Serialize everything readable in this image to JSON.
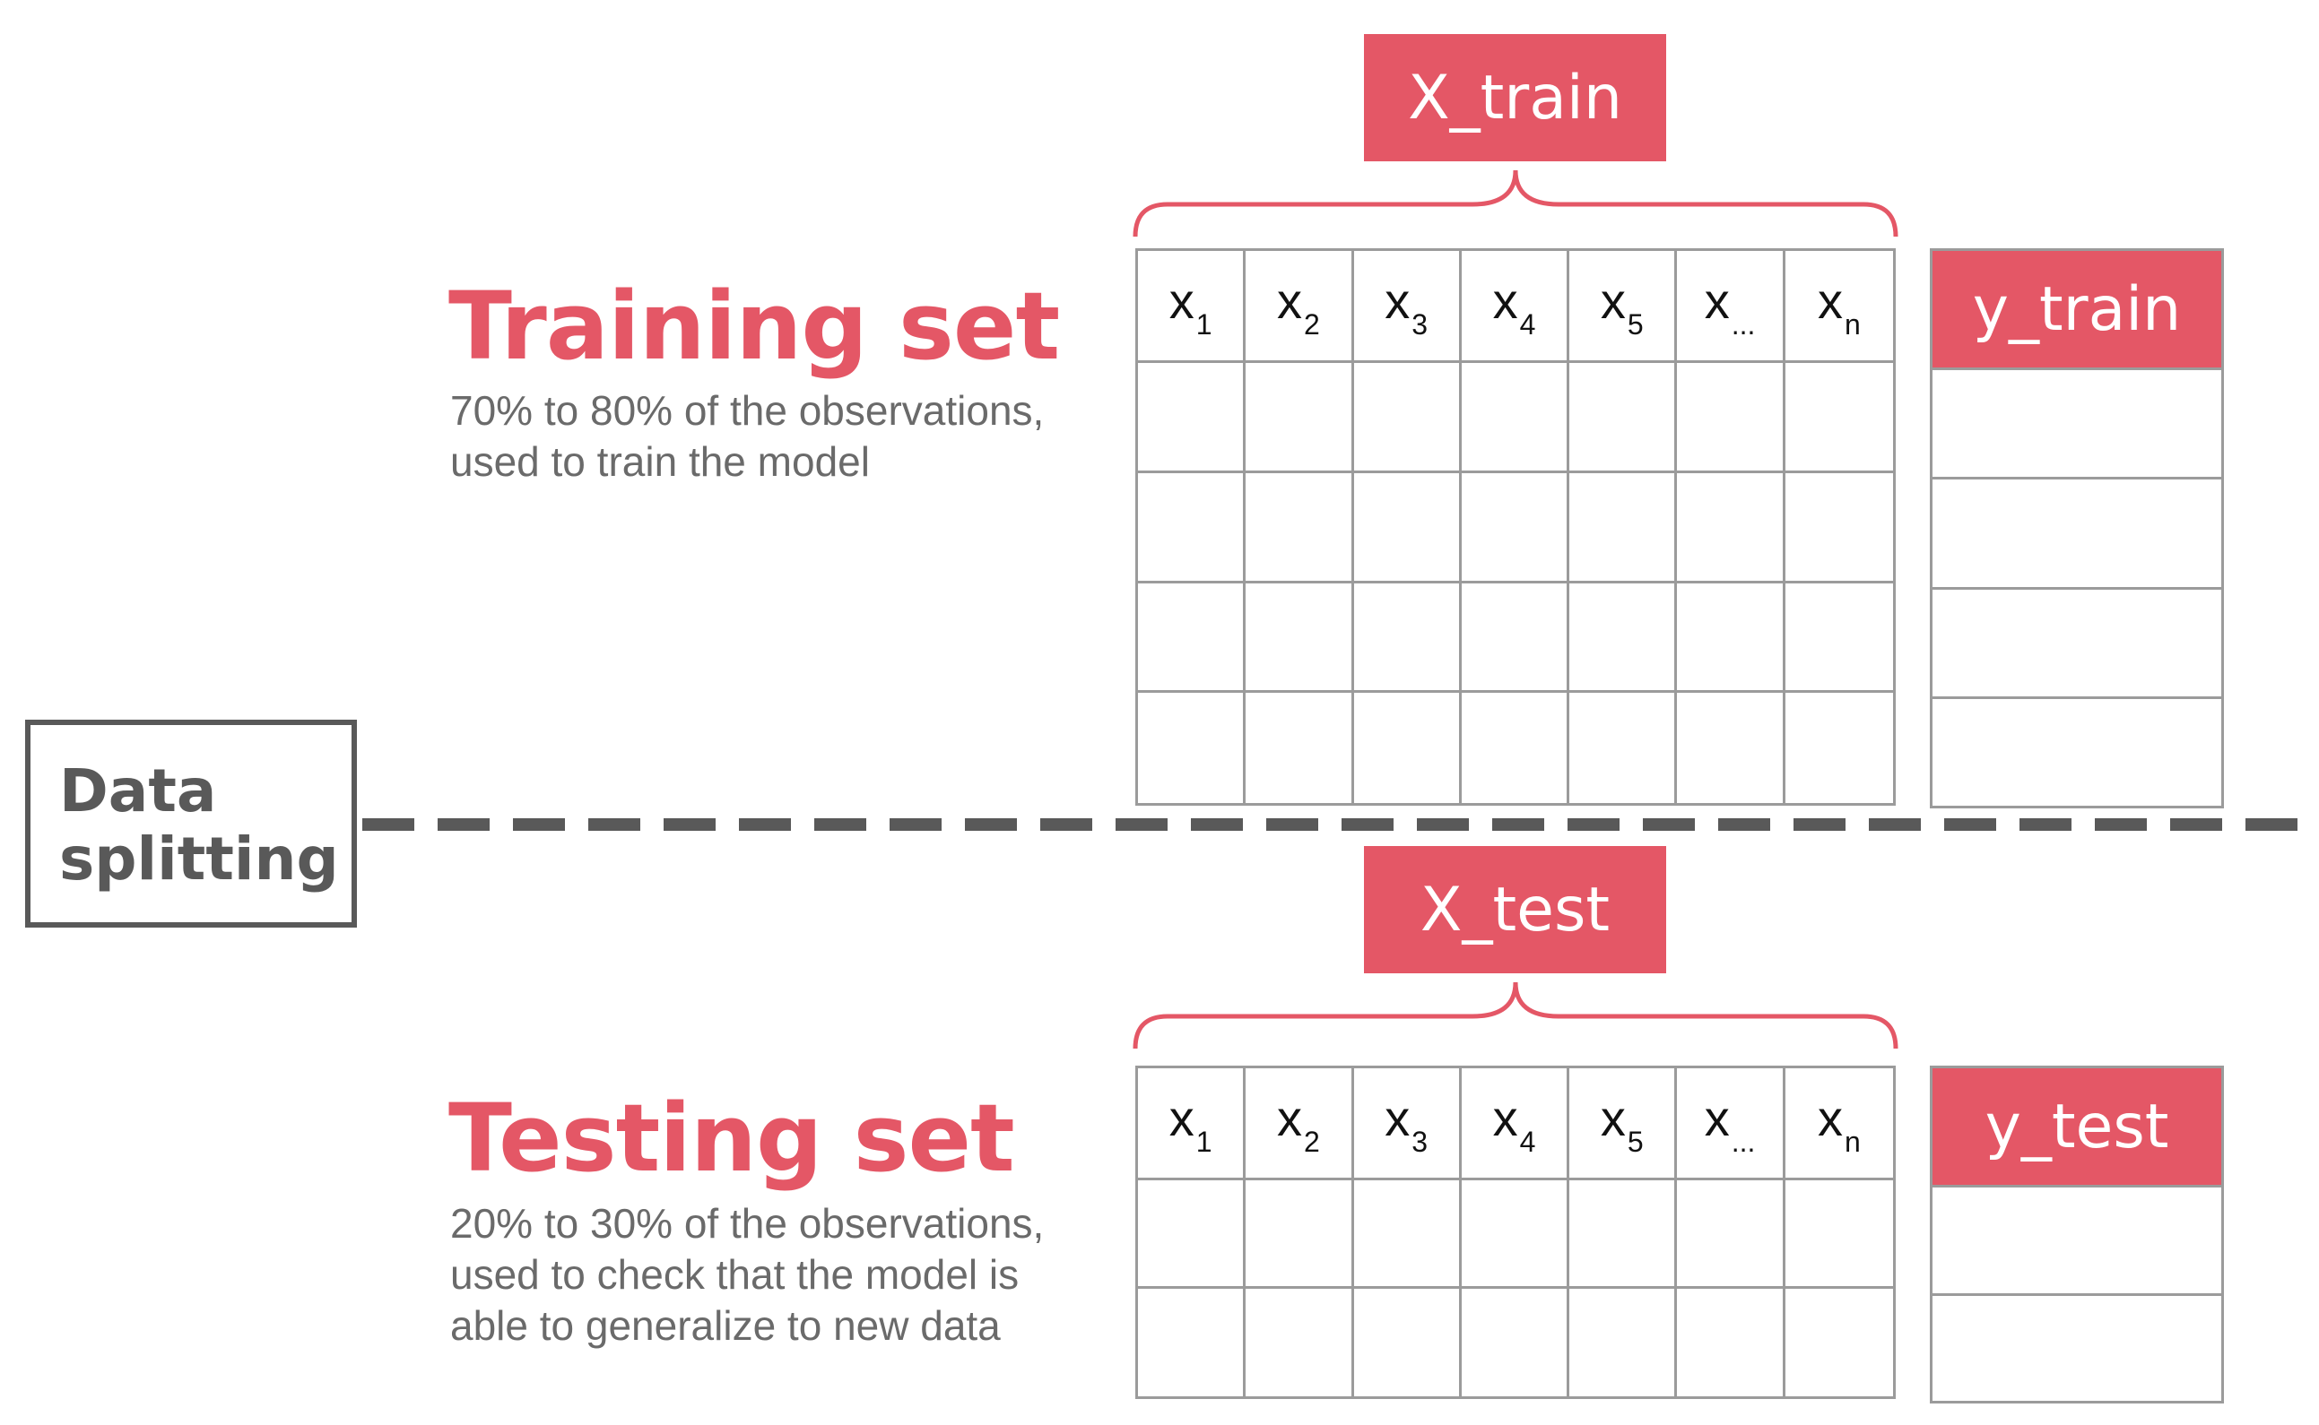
{
  "colors": {
    "accent": "#e45766",
    "dark_gray": "#595959",
    "grid_gray": "#9b9b9b",
    "desc_gray": "#6a6a6a"
  },
  "splitter": {
    "line1": "Data",
    "line2": "splitting"
  },
  "training": {
    "title": "Training set",
    "desc_lines": [
      "70% to 80% of the observations,",
      "used to train the model"
    ],
    "x_label": "X_train",
    "y_label": "y_train",
    "data_rows": 4
  },
  "testing": {
    "title": "Testing set",
    "desc_lines": [
      "20% to 30% of the observations,",
      "used to check that the model is",
      "able to generalize to new data"
    ],
    "x_label": "X_test",
    "y_label": "y_test",
    "data_rows": 2
  },
  "features": [
    {
      "var": "x",
      "sub": "1"
    },
    {
      "var": "x",
      "sub": "2"
    },
    {
      "var": "x",
      "sub": "3"
    },
    {
      "var": "x",
      "sub": "4"
    },
    {
      "var": "x",
      "sub": "5"
    },
    {
      "var": "x",
      "sub": "..."
    },
    {
      "var": "x",
      "sub": "n"
    }
  ]
}
